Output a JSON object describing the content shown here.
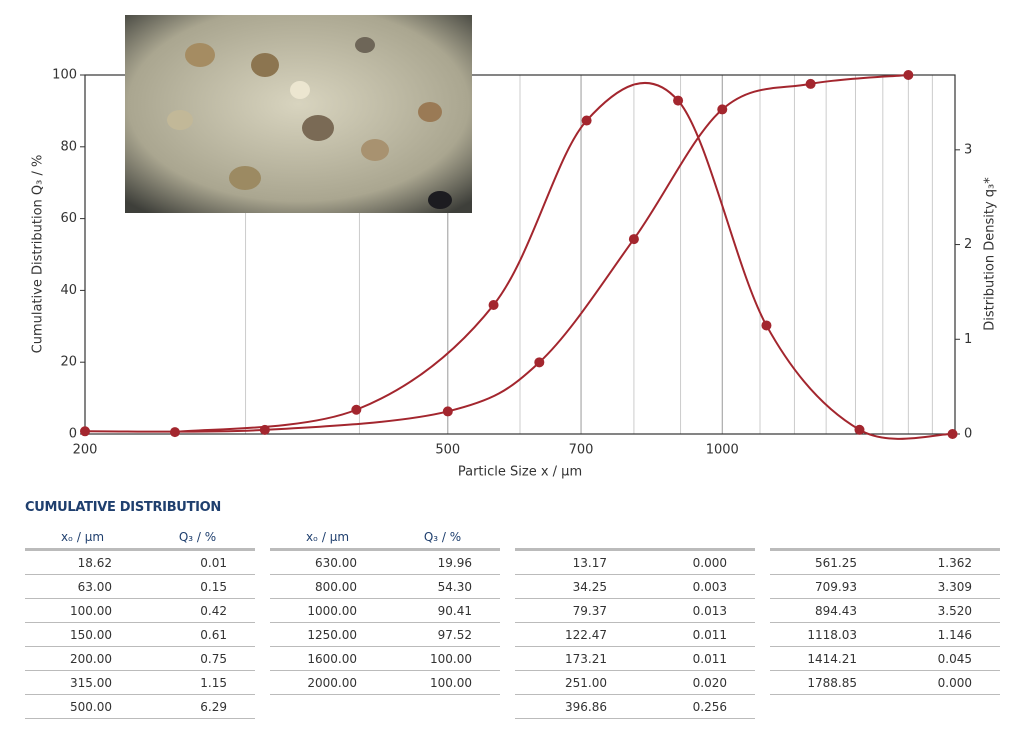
{
  "chart_data": {
    "type": "line",
    "xlabel": "Particle Size x / µm",
    "ylabel": "Cumulative Distribution Q₃ / %",
    "y2label": "Distribution Density q₃*",
    "xscale": "log",
    "xlim": [
      200,
      1800
    ],
    "xticks": [
      200,
      500,
      700,
      1000
    ],
    "xminorticks": [
      300,
      400,
      600,
      800,
      900,
      1100,
      1200,
      1300,
      1400,
      1500,
      1600,
      1700
    ],
    "ylim": [
      0,
      100
    ],
    "yticks": [
      0,
      20,
      40,
      60,
      80,
      100
    ],
    "y2lim": [
      0,
      3.79
    ],
    "y2ticks": [
      0,
      1,
      2,
      3
    ],
    "grid": true,
    "series": [
      {
        "color": "#a3262e",
        "x": [
          200,
          315,
          500,
          630,
          800,
          1000,
          1250,
          1600
        ],
        "values": [
          0.75,
          1.15,
          6.29,
          19.96,
          54.3,
          90.41,
          97.52,
          100
        ]
      },
      {
        "color": "#a3262e",
        "axis": "y2",
        "x": [
          251,
          396.86,
          561.25,
          709.93,
          894.43,
          1118.03,
          1414.21,
          1788.85
        ],
        "values": [
          0.02,
          0.256,
          1.362,
          3.309,
          3.52,
          1.146,
          0.045,
          0.0
        ]
      }
    ]
  },
  "section_title": "CUMULATIVE DISTRIBUTION",
  "tables": [
    {
      "headers": [
        "xₒ / µm",
        "Q₃ / %"
      ],
      "rows": [
        [
          "18.62",
          "0.01"
        ],
        [
          "63.00",
          "0.15"
        ],
        [
          "100.00",
          "0.42"
        ],
        [
          "150.00",
          "0.61"
        ],
        [
          "200.00",
          "0.75"
        ],
        [
          "315.00",
          "1.15"
        ],
        [
          "500.00",
          "6.29"
        ]
      ]
    },
    {
      "headers": [
        "xₒ / µm",
        "Q₃ / %"
      ],
      "rows": [
        [
          "630.00",
          "19.96"
        ],
        [
          "800.00",
          "54.30"
        ],
        [
          "1000.00",
          "90.41"
        ],
        [
          "1250.00",
          "97.52"
        ],
        [
          "1600.00",
          "100.00"
        ],
        [
          "2000.00",
          "100.00"
        ]
      ]
    },
    {
      "rows": [
        [
          "13.17",
          "0.000"
        ],
        [
          "34.25",
          "0.003"
        ],
        [
          "79.37",
          "0.013"
        ],
        [
          "122.47",
          "0.011"
        ],
        [
          "173.21",
          "0.011"
        ],
        [
          "251.00",
          "0.020"
        ],
        [
          "396.86",
          "0.256"
        ]
      ]
    },
    {
      "rows": [
        [
          "561.25",
          "1.362"
        ],
        [
          "709.93",
          "3.309"
        ],
        [
          "894.43",
          "3.520"
        ],
        [
          "1118.03",
          "1.146"
        ],
        [
          "1414.21",
          "0.045"
        ],
        [
          "1788.85",
          "0.000"
        ]
      ]
    }
  ]
}
